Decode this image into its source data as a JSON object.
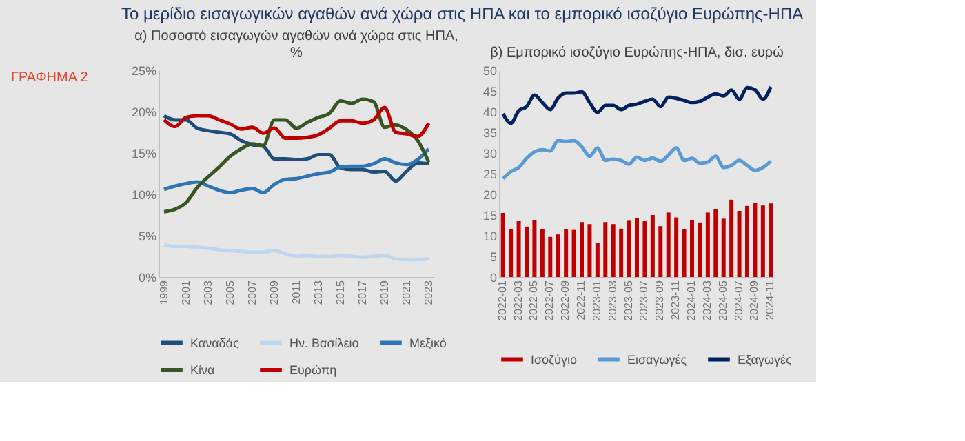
{
  "chart_data": [
    {
      "type": "line",
      "title": "α) Ποσοστό εισαγωγών αγαθών ανά χώρα στις ΗΠΑ, %",
      "annotations": [
        "ΓΡΑΦΗΜΑ 2",
        "Το μερίδιο εισαγωγικών αγαθών ανά χώρα στις ΗΠΑ και το εμπορικό ισοζύγιο Ευρώπης-ΗΠΑ"
      ],
      "categories": [
        "1999",
        null,
        "2001",
        null,
        "2003",
        null,
        "2005",
        null,
        "2007",
        null,
        "2009",
        null,
        "2011",
        null,
        "2013",
        null,
        "2015",
        null,
        "2017",
        null,
        "2019",
        null,
        "2021",
        null,
        "2023"
      ],
      "ylim": [
        0,
        25
      ],
      "yticks": [
        {
          "value": 0,
          "label": "0%"
        },
        {
          "value": 5,
          "label": "5%"
        },
        {
          "value": 10,
          "label": "10%"
        },
        {
          "value": 15,
          "label": "15%"
        },
        {
          "value": 20,
          "label": "20%"
        },
        {
          "value": 25,
          "label": "25%"
        }
      ],
      "grid": false,
      "legend": "bottom",
      "series": [
        {
          "name": "Καναδάς",
          "color": "#1f4e79",
          "values": [
            19.5,
            19,
            19,
            18,
            17.7,
            17.5,
            17.3,
            16.5,
            16,
            15.8,
            14.3,
            14.3,
            14.2,
            14.3,
            14.8,
            14.8,
            13.2,
            13,
            13,
            12.7,
            12.8,
            11.6,
            12.8,
            13.8,
            13.7
          ]
        },
        {
          "name": "Ην. Βασίλειο",
          "color": "#bdd7ee",
          "values": [
            3.9,
            3.7,
            3.7,
            3.6,
            3.5,
            3.3,
            3.2,
            3.1,
            3.0,
            3.0,
            3.2,
            2.8,
            2.5,
            2.6,
            2.5,
            2.5,
            2.6,
            2.5,
            2.4,
            2.5,
            2.6,
            2.2,
            2.1,
            2.1,
            2.2
          ]
        },
        {
          "name": "Μεξικό",
          "color": "#2e75b6",
          "values": [
            10.6,
            11,
            11.3,
            11.5,
            11,
            10.5,
            10.2,
            10.5,
            10.7,
            10.2,
            11.2,
            11.8,
            11.9,
            12.2,
            12.5,
            12.7,
            13.3,
            13.4,
            13.4,
            13.7,
            14.3,
            13.8,
            13.6,
            14.2,
            15.5
          ]
        },
        {
          "name": "Κίνα",
          "color": "#375623",
          "values": [
            7.9,
            8.2,
            9,
            10.8,
            12.1,
            13.3,
            14.6,
            15.5,
            16.1,
            15.9,
            19,
            19,
            18,
            18.7,
            19.3,
            19.8,
            21.3,
            21,
            21.5,
            21.2,
            18.1,
            18.4,
            17.8,
            16.5,
            13.9
          ]
        },
        {
          "name": "Ευρώπη",
          "color": "#c00000",
          "values": [
            19,
            18.2,
            19.3,
            19.5,
            19.5,
            19,
            18.5,
            17.9,
            18.1,
            17.4,
            18,
            16.8,
            16.8,
            16.9,
            17.2,
            18,
            18.9,
            18.9,
            18.6,
            19,
            20.5,
            17.5,
            17.3,
            17,
            18.6
          ]
        }
      ]
    },
    {
      "type": "line",
      "title": "β) Εμπορικό ισοζύγιο Ευρώπης-ΗΠΑ, δισ. ευρώ",
      "categories": [
        "2022-01",
        null,
        "2022-03",
        null,
        "2022-05",
        null,
        "2022-07",
        null,
        "2022-09",
        null,
        "2022-11",
        null,
        "2023-01",
        null,
        "2023-03",
        null,
        "2023-05",
        null,
        "2023-07",
        null,
        "2023-09",
        null,
        "2023-11",
        null,
        "2024-01",
        null,
        "2024-03",
        null,
        "2024-05",
        null,
        "2024-07",
        null,
        "2024-09",
        null,
        "2024-11"
      ],
      "ylim": [
        0,
        50
      ],
      "yticks": [
        0,
        5,
        10,
        15,
        20,
        25,
        30,
        35,
        40,
        45,
        50
      ],
      "grid": false,
      "legend": "bottom",
      "series": [
        {
          "name": "Ισοζύγιο",
          "type": "bar",
          "color": "#c00000",
          "values": [
            15.5,
            11.5,
            13.5,
            12.2,
            13.8,
            11.5,
            9.7,
            10.3,
            11.5,
            11.4,
            13.3,
            12.8,
            8.3,
            13.3,
            12.8,
            11.7,
            13.6,
            14.3,
            13.5,
            15,
            12.3,
            15.6,
            14.4,
            11.5,
            13.8,
            13.2,
            15.6,
            16.5,
            14.1,
            18.7,
            16,
            17.2,
            17.9,
            17.3,
            17.8
          ]
        },
        {
          "name": "Εισαγωγές",
          "type": "line",
          "color": "#5b9bd5",
          "values": [
            23.8,
            25.5,
            26.5,
            28.7,
            30.3,
            30.8,
            30.5,
            33,
            32.8,
            33,
            31.5,
            29.2,
            31.2,
            28.2,
            28.5,
            28.2,
            27.3,
            29,
            28.2,
            28.8,
            28,
            29.5,
            31.2,
            28.2,
            28.7,
            27.5,
            27.8,
            29.2,
            26.5,
            27,
            28.2,
            27,
            25.8,
            26.5,
            28
          ]
        },
        {
          "name": "Εξαγωγές",
          "type": "line",
          "color": "#002060",
          "values": [
            39.5,
            37.2,
            40.2,
            41.2,
            44,
            42.2,
            40.5,
            43.3,
            44.5,
            44.5,
            44.8,
            42.2,
            39.8,
            41.5,
            41.5,
            40.5,
            41.5,
            41.8,
            42.5,
            43,
            41.2,
            43.5,
            43.2,
            42.7,
            42.2,
            42.5,
            43.5,
            44.3,
            43.8,
            45.2,
            43,
            45.8,
            45.3,
            43,
            46
          ]
        }
      ]
    }
  ]
}
